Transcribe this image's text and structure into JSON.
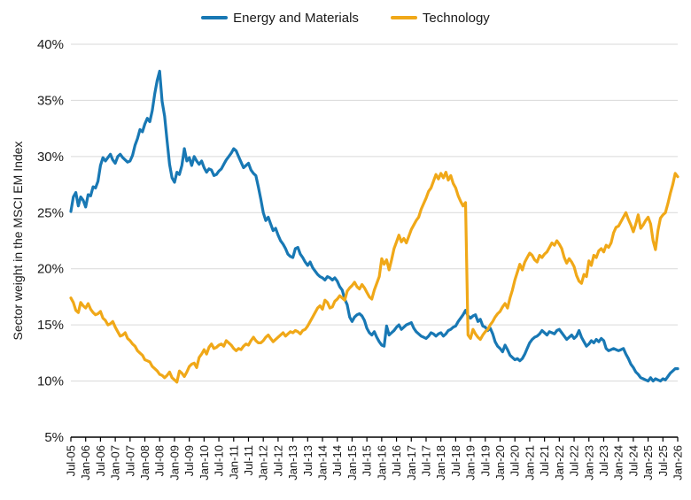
{
  "chart_data": {
    "type": "line",
    "title": "",
    "xlabel": "",
    "ylabel": "Sector weight in the MSCI EM Index",
    "ylim": [
      5,
      40
    ],
    "y_tick_step": 5,
    "y_tick_labels": [
      "40%",
      "35%",
      "30%",
      "25%",
      "20%",
      "15%",
      "10%",
      "5%"
    ],
    "grid": "horizontal-only",
    "legend_position": "top-center",
    "x_frequency": "monthly",
    "x_start": "Jul-05",
    "x_end": "Jan-26",
    "x_tick_every_n_points": 6,
    "x_tick_labels": [
      "Jul-05",
      "Jan-06",
      "Jul-06",
      "Jan-07",
      "Jul-07",
      "Jan-08",
      "Jul-08",
      "Jan-09",
      "Jul-09",
      "Jan-10",
      "Jul-10",
      "Jan-11",
      "Jul-11",
      "Jan-12",
      "Jul-12",
      "Jan-13",
      "Jul-13",
      "Jan-14",
      "Jul-14",
      "Jan-15",
      "Jul-15",
      "Jan-16",
      "Jul-16",
      "Jan-17",
      "Jul-17",
      "Jan-18",
      "Jul-18",
      "Jan-19",
      "Jul-19",
      "Jan-20",
      "Jul-20",
      "Jan-21",
      "Jul-21",
      "Jan-22",
      "Jul-22",
      "Jan-23",
      "Jul-23",
      "Jan-24",
      "Jul-24",
      "Jan-25",
      "Jul-25",
      "Jan-26"
    ],
    "series": [
      {
        "name": "Energy and Materials",
        "color": "#1878B4",
        "values": [
          25.1,
          26.4,
          26.8,
          25.6,
          26.4,
          26.1,
          25.5,
          26.6,
          26.5,
          27.3,
          27.2,
          27.8,
          29.2,
          29.9,
          29.6,
          29.9,
          30.2,
          29.7,
          29.4,
          30.0,
          30.2,
          29.9,
          29.7,
          29.5,
          29.6,
          30.1,
          31.0,
          31.6,
          32.4,
          32.2,
          32.9,
          33.4,
          33.1,
          34.1,
          35.6,
          36.8,
          37.6,
          34.9,
          33.6,
          31.4,
          29.3,
          28.1,
          27.7,
          28.6,
          28.4,
          29.2,
          30.7,
          29.6,
          29.9,
          29.2,
          30.0,
          29.6,
          29.3,
          29.6,
          29.0,
          28.6,
          28.9,
          28.8,
          28.3,
          28.4,
          28.7,
          28.9,
          29.3,
          29.7,
          30.0,
          30.3,
          30.7,
          30.5,
          30.0,
          29.5,
          29.0,
          29.2,
          29.4,
          28.8,
          28.5,
          28.3,
          27.3,
          26.2,
          25.0,
          24.3,
          24.6,
          24.0,
          23.4,
          23.6,
          23.0,
          22.5,
          22.2,
          21.8,
          21.3,
          21.1,
          21.0,
          21.8,
          21.9,
          21.3,
          21.0,
          20.6,
          20.3,
          20.6,
          20.1,
          19.8,
          19.5,
          19.3,
          19.2,
          19.0,
          19.3,
          19.2,
          19.0,
          19.2,
          18.9,
          18.4,
          18.1,
          17.3,
          16.8,
          15.7,
          15.3,
          15.7,
          15.9,
          16.0,
          15.8,
          15.4,
          14.7,
          14.3,
          14.1,
          14.4,
          13.9,
          13.5,
          13.2,
          13.1,
          14.9,
          14.1,
          14.3,
          14.5,
          14.8,
          15.0,
          14.6,
          14.8,
          15.0,
          15.1,
          15.2,
          14.7,
          14.4,
          14.2,
          14.0,
          13.9,
          13.8,
          14.0,
          14.3,
          14.2,
          14.0,
          14.2,
          14.3,
          14.0,
          14.2,
          14.5,
          14.6,
          14.8,
          14.9,
          15.3,
          15.6,
          15.9,
          16.3,
          15.8,
          15.6,
          15.8,
          15.9,
          15.3,
          15.5,
          14.9,
          14.8,
          14.5,
          14.7,
          14.2,
          13.5,
          13.1,
          12.9,
          12.6,
          13.2,
          12.8,
          12.3,
          12.1,
          11.9,
          12.0,
          11.8,
          12.0,
          12.4,
          12.9,
          13.4,
          13.7,
          13.9,
          14.0,
          14.2,
          14.5,
          14.3,
          14.1,
          14.4,
          14.3,
          14.2,
          14.5,
          14.6,
          14.3,
          14.0,
          13.7,
          13.9,
          14.1,
          13.8,
          14.0,
          14.5,
          13.9,
          13.5,
          13.1,
          13.3,
          13.6,
          13.4,
          13.7,
          13.5,
          13.8,
          13.6,
          12.9,
          12.7,
          12.8,
          12.9,
          12.8,
          12.7,
          12.8,
          12.9,
          12.4,
          12.0,
          11.5,
          11.2,
          10.8,
          10.6,
          10.3,
          10.2,
          10.1,
          10.0,
          10.3,
          10.0,
          10.2,
          10.1,
          10.0,
          10.2,
          10.1,
          10.4,
          10.7,
          10.9,
          11.1,
          11.1
        ]
      },
      {
        "name": "Technology",
        "color": "#F0A818",
        "values": [
          17.4,
          17.0,
          16.3,
          16.1,
          17.0,
          16.7,
          16.5,
          16.9,
          16.4,
          16.1,
          15.9,
          16.0,
          16.2,
          15.6,
          15.4,
          15.0,
          15.1,
          15.3,
          14.8,
          14.4,
          14.0,
          14.1,
          14.3,
          13.8,
          13.6,
          13.3,
          13.1,
          12.7,
          12.5,
          12.3,
          11.9,
          11.8,
          11.7,
          11.3,
          11.1,
          10.9,
          10.6,
          10.5,
          10.3,
          10.5,
          10.8,
          10.3,
          10.1,
          9.9,
          10.9,
          10.7,
          10.4,
          10.8,
          11.3,
          11.5,
          11.6,
          11.2,
          12.1,
          12.4,
          12.8,
          12.4,
          13.0,
          13.3,
          12.9,
          13.0,
          13.2,
          13.3,
          13.1,
          13.6,
          13.4,
          13.2,
          12.9,
          12.7,
          12.9,
          12.8,
          13.1,
          13.3,
          13.2,
          13.6,
          13.9,
          13.6,
          13.4,
          13.4,
          13.6,
          13.9,
          14.1,
          13.8,
          13.5,
          13.7,
          13.9,
          14.1,
          14.3,
          14.0,
          14.2,
          14.4,
          14.3,
          14.5,
          14.4,
          14.2,
          14.5,
          14.6,
          14.9,
          15.3,
          15.7,
          16.1,
          16.5,
          16.7,
          16.4,
          17.2,
          17.0,
          16.5,
          16.6,
          17.1,
          17.3,
          17.6,
          17.4,
          17.2,
          18.0,
          18.3,
          18.5,
          18.8,
          18.4,
          18.2,
          18.6,
          18.3,
          17.9,
          17.5,
          17.3,
          18.1,
          18.7,
          19.3,
          20.9,
          20.4,
          20.8,
          19.9,
          20.8,
          21.8,
          22.4,
          23.0,
          22.4,
          22.7,
          22.3,
          22.9,
          23.5,
          23.9,
          24.3,
          24.6,
          25.3,
          25.8,
          26.3,
          26.9,
          27.2,
          27.8,
          28.4,
          28.0,
          28.5,
          28.1,
          28.6,
          27.9,
          28.3,
          27.6,
          27.2,
          26.5,
          26.0,
          25.6,
          25.9,
          14.1,
          13.8,
          14.6,
          14.2,
          13.9,
          13.7,
          14.1,
          14.4,
          14.6,
          15.0,
          15.3,
          15.7,
          16.0,
          16.2,
          16.6,
          16.9,
          16.5,
          17.4,
          18.1,
          19.0,
          19.7,
          20.4,
          19.9,
          20.6,
          21.0,
          21.4,
          21.2,
          20.8,
          20.6,
          21.2,
          21.0,
          21.3,
          21.5,
          21.9,
          22.3,
          22.1,
          22.5,
          22.2,
          21.8,
          21.0,
          20.5,
          20.9,
          20.6,
          20.2,
          19.4,
          18.9,
          18.7,
          19.5,
          19.3,
          20.7,
          20.3,
          21.2,
          21.0,
          21.6,
          21.8,
          21.5,
          22.1,
          21.9,
          22.3,
          23.2,
          23.7,
          23.8,
          24.2,
          24.6,
          25.0,
          24.4,
          23.9,
          23.3,
          24.0,
          24.8,
          23.6,
          23.9,
          24.3,
          24.6,
          24.0,
          22.5,
          21.7,
          23.4,
          24.5,
          24.8,
          25.0,
          25.8,
          26.7,
          27.5,
          28.5,
          28.2
        ]
      }
    ]
  },
  "colors": {
    "gridline": "#D9D9D9",
    "axis": "#000000",
    "text": "#1A1A1A",
    "background": "#FFFFFF"
  }
}
